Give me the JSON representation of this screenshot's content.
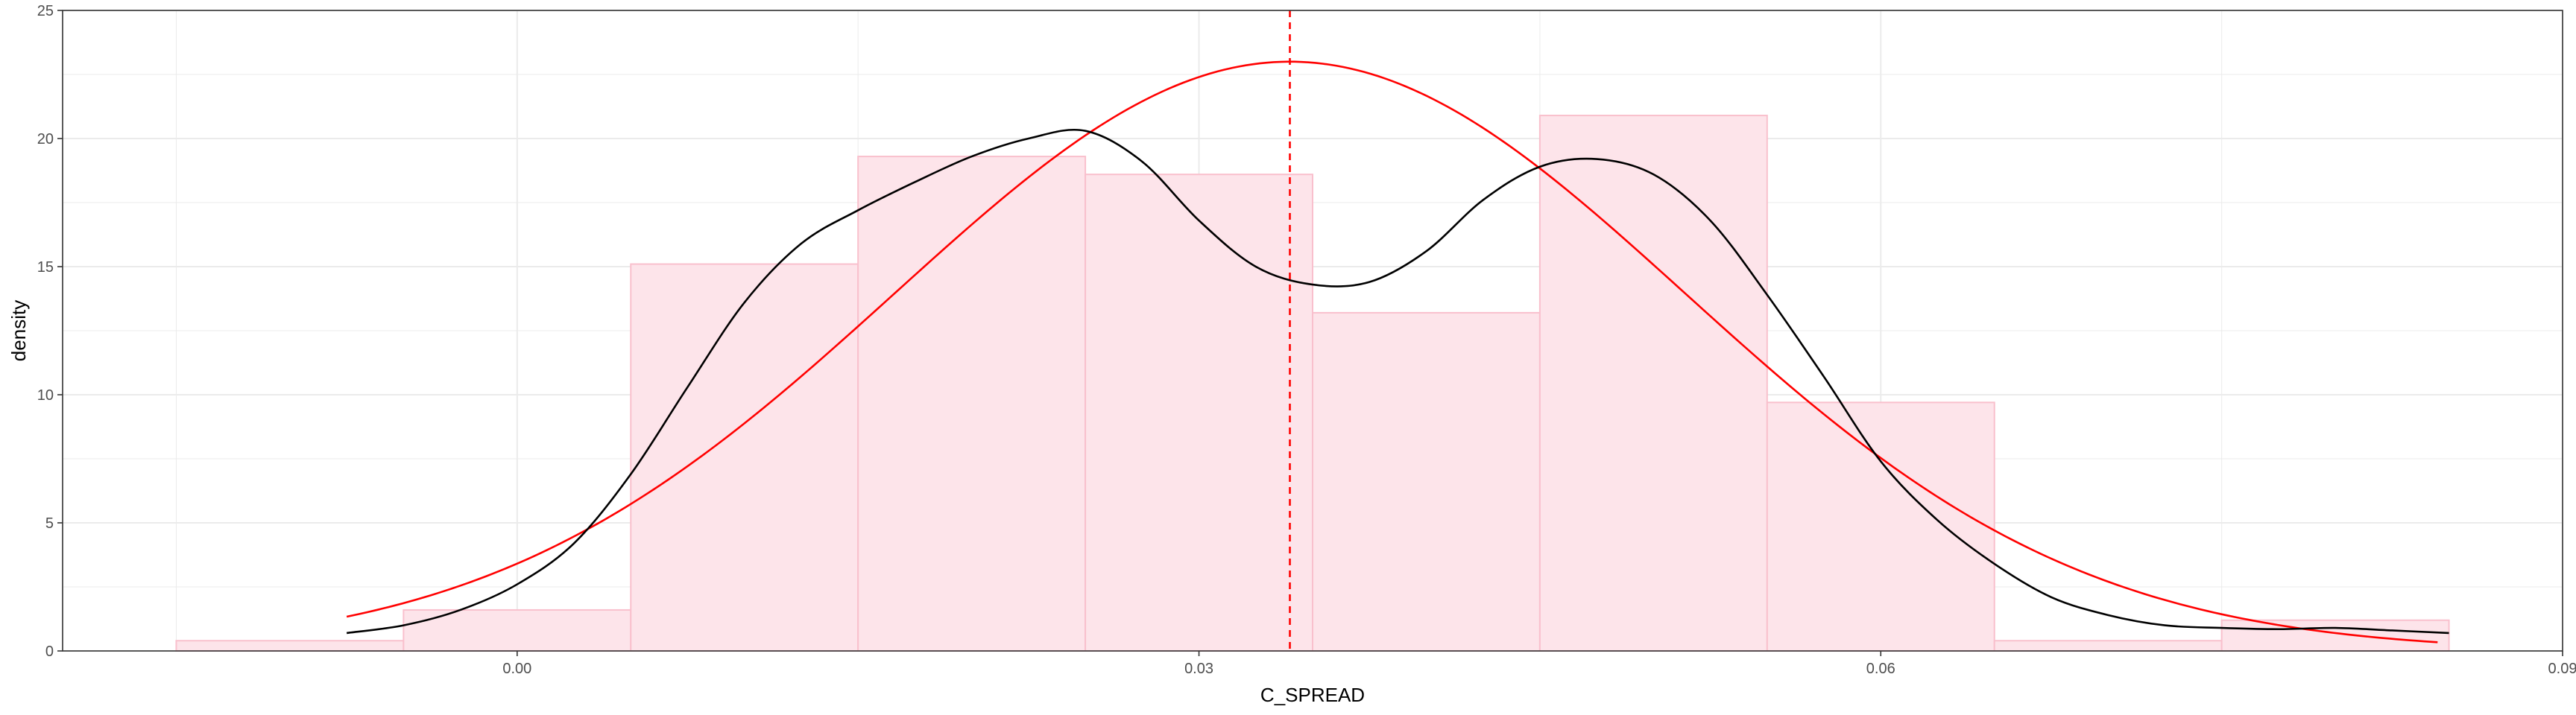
{
  "chart_data": {
    "type": "histogram",
    "xlabel": "C_SPREAD",
    "ylabel": "density",
    "xlim": [
      -0.02,
      0.09
    ],
    "ylim": [
      0,
      25
    ],
    "x_ticks": [
      {
        "value": 0.0,
        "label": "0.00"
      },
      {
        "value": 0.03,
        "label": "0.03"
      },
      {
        "value": 0.06,
        "label": "0.06"
      },
      {
        "value": 0.09,
        "label": "0.09"
      }
    ],
    "y_ticks": [
      {
        "value": 0,
        "label": "0"
      },
      {
        "value": 5,
        "label": "5"
      },
      {
        "value": 10,
        "label": "10"
      },
      {
        "value": 15,
        "label": "15"
      },
      {
        "value": 20,
        "label": "20"
      },
      {
        "value": 25,
        "label": "25"
      }
    ],
    "grid": true,
    "bins": [
      {
        "x0": -0.015,
        "x1": -0.005,
        "density": 0.4
      },
      {
        "x0": -0.005,
        "x1": 0.005,
        "density": 1.6
      },
      {
        "x0": 0.005,
        "x1": 0.015,
        "density": 15.1
      },
      {
        "x0": 0.015,
        "x1": 0.025,
        "density": 19.3
      },
      {
        "x0": 0.025,
        "x1": 0.035,
        "density": 18.6
      },
      {
        "x0": 0.035,
        "x1": 0.045,
        "density": 13.2
      },
      {
        "x0": 0.045,
        "x1": 0.055,
        "density": 20.9
      },
      {
        "x0": 0.055,
        "x1": 0.065,
        "density": 9.7
      },
      {
        "x0": 0.065,
        "x1": 0.075,
        "density": 0.4
      },
      {
        "x0": 0.075,
        "x1": 0.085,
        "density": 1.2
      }
    ],
    "kde": {
      "x": [
        -0.0075,
        -0.005,
        -0.0025,
        0.0,
        0.0025,
        0.005,
        0.0075,
        0.01,
        0.0125,
        0.015,
        0.0175,
        0.02,
        0.0225,
        0.025,
        0.0275,
        0.03,
        0.0325,
        0.035,
        0.0375,
        0.04,
        0.0425,
        0.045,
        0.0475,
        0.05,
        0.0525,
        0.055,
        0.0575,
        0.06,
        0.0625,
        0.065,
        0.0675,
        0.07,
        0.0725,
        0.075,
        0.0775,
        0.08,
        0.0825,
        0.085
      ],
      "y": [
        0.7,
        1.0,
        1.6,
        2.6,
        4.2,
        6.9,
        10.3,
        13.6,
        15.9,
        17.2,
        18.3,
        19.3,
        20.0,
        20.3,
        19.1,
        16.8,
        15.0,
        14.3,
        14.4,
        15.6,
        17.6,
        18.9,
        19.2,
        18.6,
        16.8,
        13.9,
        10.7,
        7.4,
        5.1,
        3.4,
        2.1,
        1.4,
        1.0,
        0.9,
        0.85,
        0.9,
        0.8,
        0.7
      ]
    },
    "normal_fit": {
      "mean": 0.034,
      "sd": 0.0174,
      "peak_density": 23.0,
      "x_range": [
        -0.0075,
        0.0845
      ]
    },
    "mean_line": {
      "x": 0.034
    },
    "colors": {
      "bar_fill": "#fde4ea",
      "bar_stroke": "#f9c0cd",
      "kde": "#000000",
      "normal": "#ff0000",
      "mean_line": "#ff0000",
      "grid": "#ebebeb",
      "panel_border": "#333333",
      "tick_text": "#4d4d4d"
    }
  }
}
